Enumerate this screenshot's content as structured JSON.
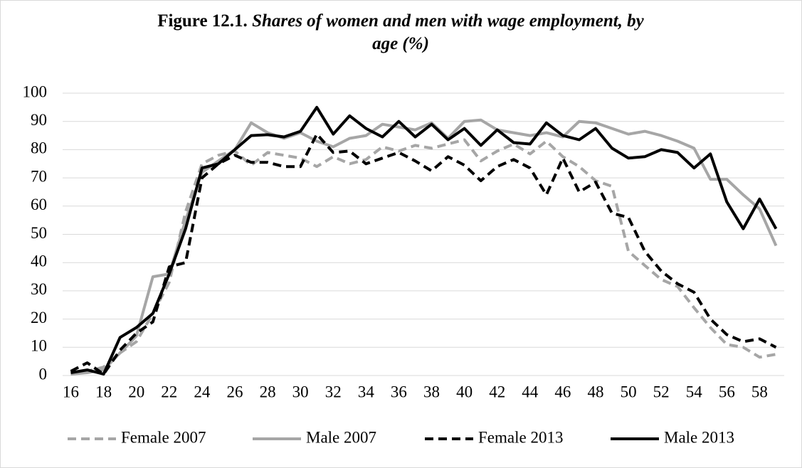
{
  "chart_data": {
    "type": "line",
    "title_prefix": "Figure  12.1.",
    "title": "Shares of women and men with wage employment, by age (%)",
    "x": [
      16,
      17,
      18,
      19,
      20,
      21,
      22,
      23,
      24,
      25,
      26,
      27,
      28,
      29,
      30,
      31,
      32,
      33,
      34,
      35,
      36,
      37,
      38,
      39,
      40,
      41,
      42,
      43,
      44,
      45,
      46,
      47,
      48,
      49,
      50,
      51,
      52,
      53,
      54,
      55,
      56,
      57,
      58,
      59
    ],
    "xlim": [
      15.5,
      59.5
    ],
    "xticks": [
      16,
      18,
      20,
      22,
      24,
      26,
      28,
      30,
      32,
      34,
      36,
      38,
      40,
      42,
      44,
      46,
      48,
      50,
      52,
      54,
      56,
      58
    ],
    "ylim": [
      0,
      100
    ],
    "yticks": [
      0,
      10,
      20,
      30,
      40,
      50,
      60,
      70,
      80,
      90,
      100
    ],
    "grid": true,
    "legend": "bottom",
    "series": [
      {
        "name": "Female 2007",
        "color": "#a6a6a6",
        "style": "dashed",
        "values": [
          0.5,
          1.5,
          3,
          8,
          12,
          22,
          33,
          58,
          75,
          78,
          79.5,
          74.5,
          79,
          78,
          77,
          74,
          77.5,
          75,
          76.5,
          81,
          79.5,
          81.5,
          80.5,
          82,
          83.5,
          76,
          79.5,
          82,
          78.5,
          83,
          77.5,
          74,
          69,
          67,
          44,
          39,
          34,
          31.5,
          24,
          17,
          11,
          10,
          6.5,
          7.5
        ]
      },
      {
        "name": "Male 2007",
        "color": "#a6a6a6",
        "style": "solid",
        "values": [
          0.5,
          1,
          2,
          8,
          14,
          35,
          36,
          55,
          72,
          76,
          80,
          89.5,
          86,
          84,
          86,
          83,
          81,
          84,
          85,
          89,
          88,
          87,
          89.5,
          84,
          90,
          90.5,
          87,
          86,
          85,
          86,
          84.5,
          90,
          89.5,
          87.5,
          85.5,
          86.5,
          85,
          83,
          80.5,
          69.5,
          69.5,
          64,
          59,
          46
        ]
      },
      {
        "name": "Female 2013",
        "color": "#000000",
        "style": "dashed",
        "values": [
          1.5,
          4.5,
          0.5,
          9,
          15,
          19,
          38.5,
          40,
          70,
          75,
          78,
          75.5,
          75.5,
          74,
          74,
          85.5,
          79,
          79.5,
          75,
          77,
          79,
          76,
          72.5,
          77.5,
          74.5,
          69,
          74,
          76.5,
          73.5,
          64,
          77,
          65,
          68.5,
          57.5,
          56,
          44,
          37,
          32.5,
          29.5,
          20,
          14.5,
          12,
          13,
          10
        ]
      },
      {
        "name": "Male 2013",
        "color": "#000000",
        "style": "solid",
        "values": [
          1,
          2,
          0.5,
          13.5,
          17,
          22,
          36,
          52,
          73.5,
          75,
          80,
          85,
          85.3,
          84.5,
          86.5,
          95,
          85.5,
          92,
          87.5,
          84.5,
          90,
          84.5,
          89,
          83.5,
          87.5,
          81.5,
          87,
          82.5,
          82,
          89.5,
          85,
          83.5,
          87.5,
          80.5,
          77,
          77.5,
          80,
          79,
          73.5,
          78.5,
          61.5,
          52,
          62.5,
          52
        ]
      }
    ]
  }
}
